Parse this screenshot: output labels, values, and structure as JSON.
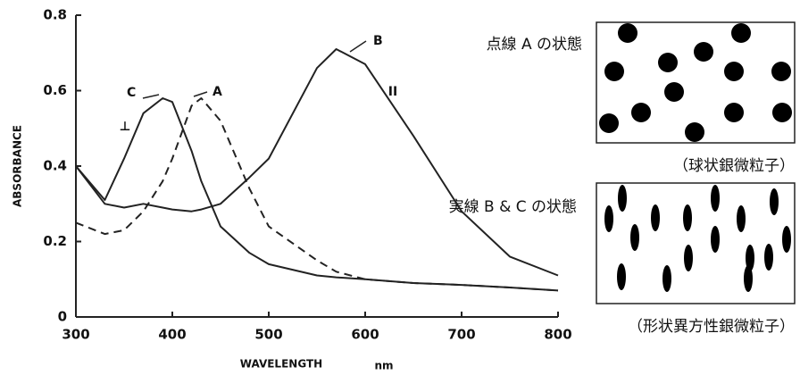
{
  "chart_data": {
    "type": "line",
    "xlabel": "WAVELENGTH",
    "x_unit": "nm",
    "ylabel": "ABSORBANCE",
    "x": [
      300,
      330,
      350,
      370,
      390,
      400,
      420,
      430,
      450,
      480,
      500,
      550,
      570,
      600,
      650,
      700,
      750,
      800
    ],
    "xlim": [
      300,
      800
    ],
    "xticks": [
      300,
      400,
      500,
      600,
      700,
      800
    ],
    "ylim": [
      0,
      0.8
    ],
    "yticks": [
      0,
      0.2,
      0.4,
      0.6,
      0.8
    ],
    "series": [
      {
        "name": "A",
        "color": "#222",
        "dashed": true,
        "values": [
          0.25,
          0.22,
          0.23,
          0.28,
          0.36,
          0.42,
          0.56,
          0.58,
          0.52,
          0.34,
          0.24,
          0.15,
          0.12,
          0.1,
          0.09,
          0.085,
          0.078,
          0.07
        ]
      },
      {
        "name": "B",
        "color": "#222",
        "dashed": false,
        "values": [
          0.4,
          0.3,
          0.29,
          0.3,
          0.29,
          0.285,
          0.28,
          0.285,
          0.3,
          0.37,
          0.42,
          0.66,
          0.71,
          0.67,
          0.48,
          0.28,
          0.16,
          0.11
        ]
      },
      {
        "name": "C",
        "color": "#222",
        "dashed": false,
        "values": [
          0.4,
          0.31,
          0.42,
          0.54,
          0.58,
          0.57,
          0.44,
          0.36,
          0.24,
          0.17,
          0.14,
          0.11,
          0.105,
          0.1,
          0.09,
          0.085,
          0.078,
          0.07
        ]
      }
    ],
    "annotations": [
      "⊥",
      "II"
    ]
  },
  "panels": [
    {
      "title": "点線 A の状態",
      "caption": "（球状銀微粒子）"
    },
    {
      "title": "実線 B & C の状態",
      "caption": "（形状異方性銀微粒子）"
    }
  ]
}
